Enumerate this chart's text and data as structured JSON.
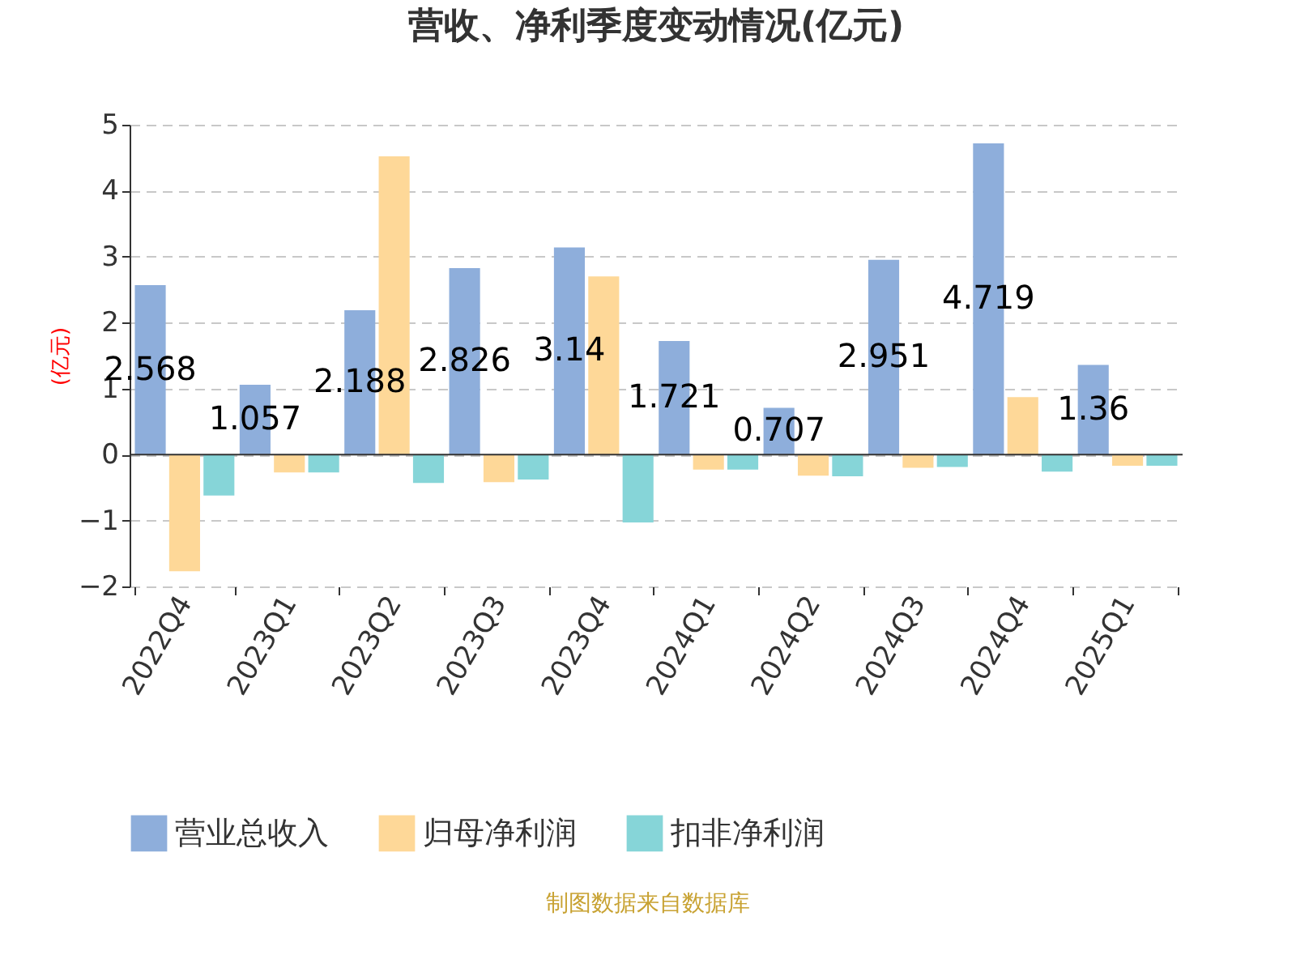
{
  "chart_data": {
    "type": "bar",
    "title": "营收、净利季度变动情况(亿元)",
    "ylabel": "(亿元)",
    "categories": [
      "2022Q4",
      "2023Q1",
      "2023Q2",
      "2023Q3",
      "2023Q4",
      "2024Q1",
      "2024Q2",
      "2024Q3",
      "2024Q4",
      "2025Q1"
    ],
    "series": [
      {
        "name": "营业总收入",
        "color": "#8eaedb",
        "values": [
          2.568,
          1.057,
          2.188,
          2.826,
          3.14,
          1.721,
          0.707,
          2.951,
          4.719,
          1.36
        ],
        "value_labels": [
          "2.568",
          "1.057",
          "2.188",
          "2.826",
          "3.14",
          "1.721",
          "0.707",
          "2.951",
          "4.719",
          "1.36"
        ]
      },
      {
        "name": "归母净利润",
        "color": "#fed898",
        "values": [
          -1.77,
          -0.27,
          4.52,
          -0.42,
          2.7,
          -0.23,
          -0.32,
          -0.2,
          0.87,
          -0.17
        ]
      },
      {
        "name": "扣非净利润",
        "color": "#86d5d8",
        "values": [
          -0.62,
          -0.27,
          -0.43,
          -0.38,
          -1.03,
          -0.23,
          -0.33,
          -0.19,
          -0.26,
          -0.17
        ]
      }
    ],
    "ylim": [
      -2,
      5
    ],
    "yticks": [
      -2,
      -1,
      0,
      1,
      2,
      3,
      4,
      5
    ],
    "grid": "y",
    "legend": "bottom",
    "annotations": [
      "制图数据来自数据库"
    ]
  }
}
